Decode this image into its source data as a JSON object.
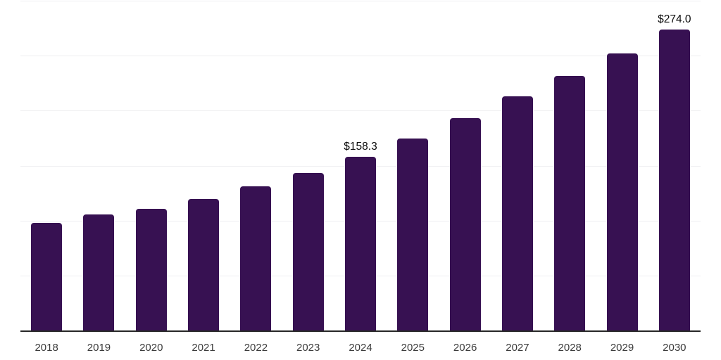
{
  "chart_data": {
    "type": "bar",
    "title": "",
    "xlabel": "",
    "ylabel": "",
    "categories": [
      "2018",
      "2019",
      "2020",
      "2021",
      "2022",
      "2023",
      "2024",
      "2025",
      "2026",
      "2027",
      "2028",
      "2029",
      "2030"
    ],
    "values": [
      98.0,
      105.9,
      111.0,
      119.4,
      131.2,
      143.4,
      158.3,
      174.5,
      193.2,
      213.3,
      231.9,
      252.3,
      274.0
    ],
    "annotations": [
      {
        "index": 6,
        "category": "2024",
        "label": "$158.3"
      },
      {
        "index": 12,
        "category": "2030",
        "label": "$274.0"
      }
    ],
    "ylim": [
      0,
      300
    ],
    "gridline_step": 50,
    "grid": "horizontal-only",
    "legend": "none",
    "y_tick_labels_visible": false,
    "colors": {
      "bar": "#371152",
      "axis_line": "#262626",
      "gridline": "#efeff1",
      "tick_label": "#3b3b3b",
      "annotation_text": "#0a0a0a",
      "background": "#ffffff"
    }
  }
}
